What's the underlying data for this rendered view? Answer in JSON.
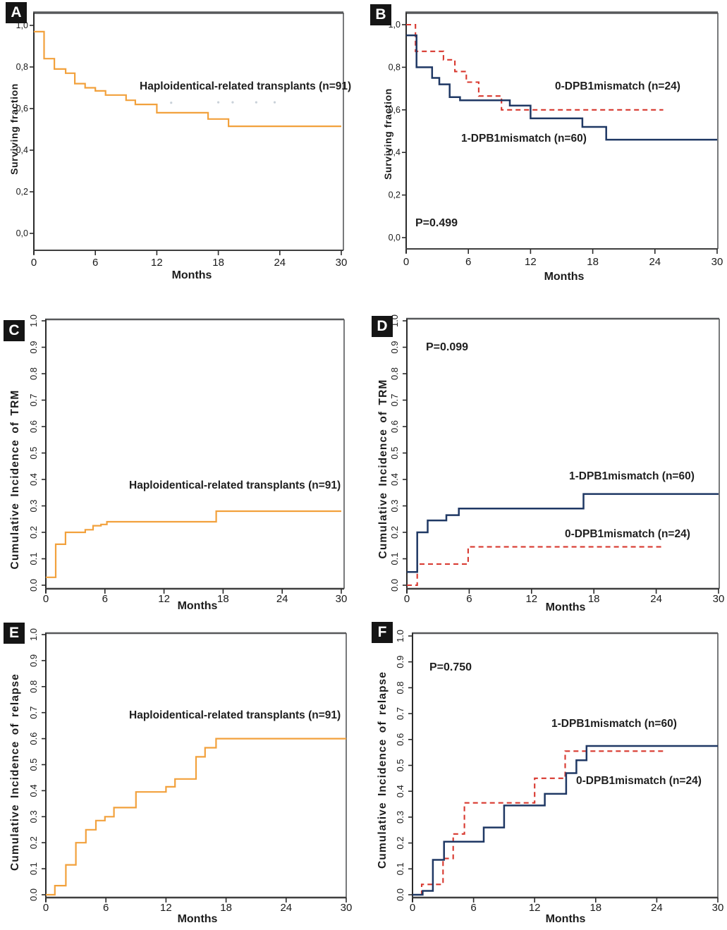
{
  "figure": {
    "background": "#ffffff",
    "panel_count": 6
  },
  "chart_data": [
    {
      "panel": "A",
      "type": "line",
      "plot_kind": "kaplan-meier-step",
      "xlabel": "Months",
      "ylabel": "Surviving fraction",
      "xlim": [
        0,
        30
      ],
      "ylim": [
        0.0,
        1.0
      ],
      "x_ticks": [
        0,
        6,
        12,
        18,
        24,
        30
      ],
      "x_tick_labels": [
        "0",
        "6",
        "12",
        "18",
        "24",
        "30"
      ],
      "y_ticks": [
        0.0,
        0.2,
        0.4,
        0.6,
        0.8,
        1.0
      ],
      "y_tick_labels": [
        "0,0",
        "0,2",
        "0,4",
        "0,6",
        "0,8",
        "1,0"
      ],
      "p_value": "",
      "annotations": [
        {
          "text": "Haploidentical-related transplants (n=91)"
        }
      ],
      "series": [
        {
          "name": "haploidentical-related-transplants",
          "label": "Haploidentical-related transplants (n=91)",
          "color": "#F2A13C",
          "style": "solid",
          "width": 2.2,
          "end_x": 30,
          "steps": [
            [
              0,
              0.97
            ],
            [
              1,
              0.84
            ],
            [
              2,
              0.79
            ],
            [
              3.1,
              0.77
            ],
            [
              4,
              0.72
            ],
            [
              5,
              0.7
            ],
            [
              6,
              0.685
            ],
            [
              7,
              0.665
            ],
            [
              9,
              0.64
            ],
            [
              9.9,
              0.62
            ],
            [
              12,
              0.58
            ],
            [
              17,
              0.55
            ],
            [
              19,
              0.515
            ]
          ]
        }
      ],
      "censor_marks": {
        "color": "#c9d1d9",
        "points": [
          [
            13.4,
            0.628
          ],
          [
            18,
            0.63
          ],
          [
            19.4,
            0.63
          ],
          [
            21.7,
            0.63
          ],
          [
            23.5,
            0.63
          ]
        ]
      }
    },
    {
      "panel": "B",
      "type": "line",
      "plot_kind": "kaplan-meier-step",
      "xlabel": "Months",
      "ylabel": "Surviving fraction",
      "xlim": [
        0,
        30
      ],
      "ylim": [
        0.0,
        1.0
      ],
      "x_ticks": [
        0,
        6,
        12,
        18,
        24,
        30
      ],
      "x_tick_labels": [
        "0",
        "6",
        "12",
        "18",
        "24",
        "30"
      ],
      "y_ticks": [
        0.0,
        0.2,
        0.4,
        0.6,
        0.8,
        1.0
      ],
      "y_tick_labels": [
        "0,0",
        "0,2",
        "0,4",
        "0,6",
        "0,8",
        "1,0"
      ],
      "p_value": "P=0.499",
      "annotations": [
        {
          "text": "0-DPB1mismatch (n=24)"
        },
        {
          "text": "1-DPB1mismatch (n=60)"
        }
      ],
      "series": [
        {
          "name": "0-dpb1-mismatch",
          "label": "0-DPB1mismatch (n=24)",
          "color": "#D8382F",
          "style": "dashed",
          "width": 2.1,
          "end_x": 24.8,
          "steps": [
            [
              0,
              1.0
            ],
            [
              0.9,
              0.875
            ],
            [
              3.6,
              0.835
            ],
            [
              4.7,
              0.78
            ],
            [
              5.8,
              0.73
            ],
            [
              7,
              0.665
            ],
            [
              9.2,
              0.6
            ]
          ]
        },
        {
          "name": "1-dpb1-mismatch",
          "label": "1-DPB1mismatch (n=60)",
          "color": "#1F3864",
          "style": "solid",
          "width": 2.5,
          "end_x": 30,
          "steps": [
            [
              0,
              0.95
            ],
            [
              1,
              0.8
            ],
            [
              2.5,
              0.75
            ],
            [
              3.2,
              0.72
            ],
            [
              4.2,
              0.66
            ],
            [
              5.2,
              0.645
            ],
            [
              10,
              0.62
            ],
            [
              12,
              0.56
            ],
            [
              17,
              0.52
            ],
            [
              19.3,
              0.46
            ]
          ]
        }
      ]
    },
    {
      "panel": "C",
      "type": "line",
      "plot_kind": "cumulative-incidence-step",
      "xlabel": "Months",
      "ylabel": "Cumulative  Incidence  of TRM",
      "xlim": [
        0,
        30
      ],
      "ylim": [
        0.0,
        1.0
      ],
      "x_ticks": [
        0,
        6,
        12,
        18,
        24,
        30
      ],
      "x_tick_labels": [
        "0",
        "6",
        "12",
        "18",
        "24",
        "30"
      ],
      "y_ticks": [
        0.0,
        0.1,
        0.2,
        0.3,
        0.4,
        0.5,
        0.6,
        0.7,
        0.8,
        0.9,
        1.0
      ],
      "y_tick_labels": [
        "0.0",
        "0.1",
        "0.2",
        "0.3",
        "0.4",
        "0.5",
        "0.6",
        "0.7",
        "0.8",
        "0.9",
        "1.0"
      ],
      "p_value": "",
      "annotations": [
        {
          "text": "Haploidentical-related transplants (n=91)"
        }
      ],
      "series": [
        {
          "name": "haploidentical-related-transplants",
          "label": "Haploidentical-related transplants (n=91)",
          "color": "#F2A13C",
          "style": "solid",
          "width": 2.2,
          "end_x": 30,
          "steps": [
            [
              0,
              0.03
            ],
            [
              1,
              0.155
            ],
            [
              2,
              0.2
            ],
            [
              4,
              0.21
            ],
            [
              4.8,
              0.225
            ],
            [
              5.6,
              0.23
            ],
            [
              6.2,
              0.24
            ],
            [
              17.3,
              0.28
            ]
          ]
        }
      ]
    },
    {
      "panel": "D",
      "type": "line",
      "plot_kind": "cumulative-incidence-step",
      "xlabel": "Months",
      "ylabel": "Cumulative  Incidence  of TRM",
      "xlim": [
        0,
        30
      ],
      "ylim": [
        0.0,
        1.0
      ],
      "x_ticks": [
        0,
        6,
        12,
        18,
        24,
        30
      ],
      "x_tick_labels": [
        "0",
        "6",
        "12",
        "18",
        "24",
        "30"
      ],
      "y_ticks": [
        0.0,
        0.1,
        0.2,
        0.3,
        0.4,
        0.5,
        0.6,
        0.7,
        0.8,
        0.9,
        1.0
      ],
      "y_tick_labels": [
        "0.0",
        "0.1",
        "0.2",
        "0.3",
        "0.4",
        "0.5",
        "0.6",
        "0.7",
        "0.8",
        "0.9",
        "1.0"
      ],
      "p_value": "P=0.099",
      "annotations": [
        {
          "text": "1-DPB1mismatch (n=60)"
        },
        {
          "text": "0-DPB1mismatch (n=24)"
        }
      ],
      "series": [
        {
          "name": "0-dpb1-mismatch",
          "label": "0-DPB1mismatch (n=24)",
          "color": "#D8382F",
          "style": "dashed",
          "width": 2.1,
          "end_x": 24.7,
          "steps": [
            [
              0,
              0.0
            ],
            [
              1,
              0.08
            ],
            [
              5.9,
              0.145
            ]
          ]
        },
        {
          "name": "1-dpb1-mismatch",
          "label": "1-DPB1mismatch (n=60)",
          "color": "#1F3864",
          "style": "solid",
          "width": 2.5,
          "end_x": 30,
          "steps": [
            [
              0,
              0.05
            ],
            [
              1,
              0.2
            ],
            [
              2,
              0.245
            ],
            [
              3.8,
              0.265
            ],
            [
              5,
              0.29
            ],
            [
              17,
              0.345
            ]
          ]
        }
      ]
    },
    {
      "panel": "E",
      "type": "line",
      "plot_kind": "cumulative-incidence-step",
      "xlabel": "Months",
      "ylabel": "Cumulative Incidence of relapse",
      "xlim": [
        0,
        30
      ],
      "ylim": [
        0.0,
        1.0
      ],
      "x_ticks": [
        0,
        6,
        12,
        18,
        24,
        30
      ],
      "x_tick_labels": [
        "0",
        "6",
        "12",
        "18",
        "24",
        "30"
      ],
      "y_ticks": [
        0.0,
        0.1,
        0.2,
        0.3,
        0.4,
        0.5,
        0.6,
        0.7,
        0.8,
        0.9,
        1.0
      ],
      "y_tick_labels": [
        "0.0",
        "0.1",
        "0.2",
        "0.3",
        "0.4",
        "0.5",
        "0.6",
        "0.7",
        "0.8",
        "0.9",
        "1.0"
      ],
      "p_value": "",
      "annotations": [
        {
          "text": "Haploidentical-related transplants (n=91)"
        }
      ],
      "series": [
        {
          "name": "haploidentical-related-transplants",
          "label": "Haploidentical-related transplants (n=91)",
          "color": "#F2A13C",
          "style": "solid",
          "width": 2.2,
          "end_x": 30,
          "steps": [
            [
              0,
              0.0
            ],
            [
              0.9,
              0.035
            ],
            [
              2,
              0.115
            ],
            [
              3,
              0.2
            ],
            [
              4,
              0.25
            ],
            [
              5,
              0.285
            ],
            [
              5.9,
              0.3
            ],
            [
              6.8,
              0.335
            ],
            [
              9,
              0.395
            ],
            [
              12,
              0.415
            ],
            [
              12.9,
              0.445
            ],
            [
              15,
              0.53
            ],
            [
              15.9,
              0.565
            ],
            [
              17,
              0.6
            ]
          ]
        }
      ]
    },
    {
      "panel": "F",
      "type": "line",
      "plot_kind": "cumulative-incidence-step",
      "xlabel": "Months",
      "ylabel": "Cumulative Incidence of relapse",
      "xlim": [
        0,
        30
      ],
      "ylim": [
        0.0,
        1.0
      ],
      "x_ticks": [
        0,
        6,
        12,
        18,
        24,
        30
      ],
      "x_tick_labels": [
        "0",
        "6",
        "12",
        "18",
        "24",
        "30"
      ],
      "y_ticks": [
        0.0,
        0.1,
        0.2,
        0.3,
        0.4,
        0.5,
        0.6,
        0.7,
        0.8,
        0.9,
        1.0
      ],
      "y_tick_labels": [
        "0.0",
        "0.1",
        "0.2",
        "0.3",
        "0.4",
        "0.5",
        "0.6",
        "0.7",
        "0.8",
        "0.9",
        "1.0"
      ],
      "p_value": "P=0.750",
      "annotations": [
        {
          "text": "1-DPB1mismatch (n=60)"
        },
        {
          "text": "0-DPB1mismatch (n=24)"
        }
      ],
      "series": [
        {
          "name": "0-dpb1-mismatch",
          "label": "0-DPB1mismatch (n=24)",
          "color": "#D8382F",
          "style": "dashed",
          "width": 2.1,
          "end_x": 24.7,
          "steps": [
            [
              0,
              0.0
            ],
            [
              0.9,
              0.04
            ],
            [
              3,
              0.14
            ],
            [
              4,
              0.235
            ],
            [
              5.1,
              0.355
            ],
            [
              12,
              0.45
            ],
            [
              15,
              0.555
            ]
          ]
        },
        {
          "name": "1-dpb1-mismatch",
          "label": "1-DPB1mismatch (n=60)",
          "color": "#1F3864",
          "style": "solid",
          "width": 2.5,
          "end_x": 30,
          "steps": [
            [
              0,
              0.0
            ],
            [
              1,
              0.015
            ],
            [
              2,
              0.135
            ],
            [
              3.1,
              0.205
            ],
            [
              7,
              0.26
            ],
            [
              9,
              0.345
            ],
            [
              13,
              0.39
            ],
            [
              15.1,
              0.47
            ],
            [
              16.1,
              0.52
            ],
            [
              17.1,
              0.575
            ]
          ]
        }
      ]
    }
  ]
}
